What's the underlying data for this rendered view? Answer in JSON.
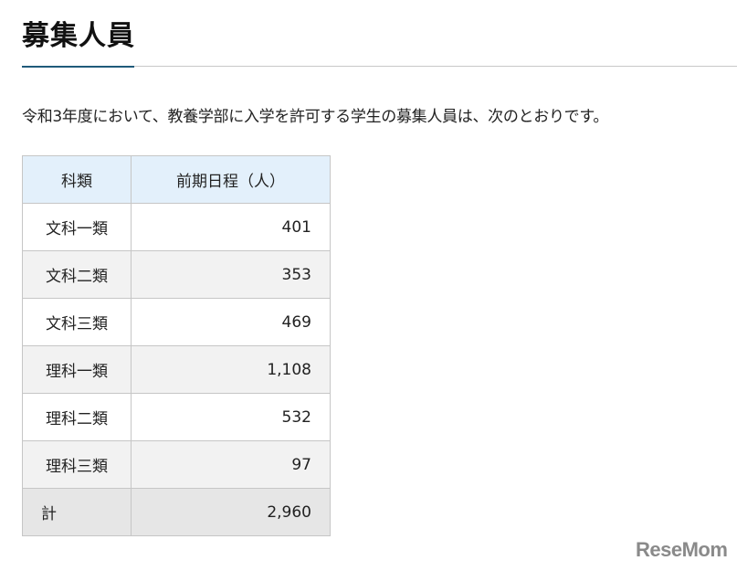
{
  "title": "募集人員",
  "lead": "令和3年度において、教養学部に入学を許可する学生の募集人員は、次のとおりです。",
  "table": {
    "headers": [
      "科類",
      "前期日程（人）"
    ],
    "rows": [
      {
        "name": "文科一類",
        "value": "401"
      },
      {
        "name": "文科二類",
        "value": "353"
      },
      {
        "name": "文科三類",
        "value": "469"
      },
      {
        "name": "理科一類",
        "value": "1,108"
      },
      {
        "name": "理科二類",
        "value": "532"
      },
      {
        "name": "理科三類",
        "value": "97"
      }
    ],
    "total": {
      "name": "計",
      "value": "2,960"
    }
  },
  "logo": "ReseMom"
}
